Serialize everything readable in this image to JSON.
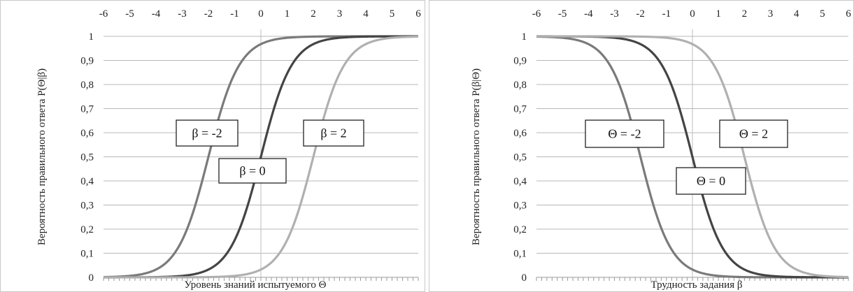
{
  "chart_data": [
    {
      "type": "line",
      "xlabel": "Уровень знаний испытуемого Θ",
      "ylabel": "Вероятность правильного ответа P(Θ|β)",
      "xlim": [
        -6,
        6
      ],
      "ylim": [
        0,
        1
      ],
      "x_ticks": [
        "-6",
        "-5",
        "-4",
        "-3",
        "-2",
        "-1",
        "0",
        "1",
        "2",
        "3",
        "4",
        "5",
        "6"
      ],
      "y_ticks": [
        "0",
        "0,1",
        "0,2",
        "0,3",
        "0,4",
        "0,5",
        "0,6",
        "0,7",
        "0,8",
        "0,9",
        "1"
      ],
      "x_axis_position": "top",
      "grid": "horizontal",
      "series": [
        {
          "name": "β = -2",
          "color": "#7a7a7a",
          "x": [
            -6,
            -5,
            -4,
            -3,
            -2,
            -1,
            0,
            1,
            2,
            3,
            4,
            5,
            6
          ],
          "values": [
            0.02,
            0.05,
            0.12,
            0.27,
            0.5,
            0.73,
            0.88,
            0.95,
            0.98,
            0.99,
            1.0,
            1.0,
            1.0
          ]
        },
        {
          "name": "β = 0",
          "color": "#444444",
          "x": [
            -6,
            -5,
            -4,
            -3,
            -2,
            -1,
            0,
            1,
            2,
            3,
            4,
            5,
            6
          ],
          "values": [
            0.0,
            0.01,
            0.02,
            0.05,
            0.12,
            0.27,
            0.5,
            0.73,
            0.88,
            0.95,
            0.98,
            0.99,
            1.0
          ]
        },
        {
          "name": "β = 2",
          "color": "#b0b0b0",
          "x": [
            -6,
            -5,
            -4,
            -3,
            -2,
            -1,
            0,
            1,
            2,
            3,
            4,
            5,
            6
          ],
          "values": [
            0.0,
            0.0,
            0.0,
            0.01,
            0.02,
            0.05,
            0.12,
            0.27,
            0.5,
            0.73,
            0.88,
            0.95,
            0.98
          ]
        }
      ],
      "annotations": [
        {
          "text": "β = -2",
          "series": 0
        },
        {
          "text": "β = 0",
          "series": 1
        },
        {
          "text": "β = 2",
          "series": 2
        }
      ]
    },
    {
      "type": "line",
      "xlabel": "Трудность задания β",
      "ylabel": "Вероятность правильного ответа P(β|Θ)",
      "xlim": [
        -6,
        6
      ],
      "ylim": [
        0,
        1
      ],
      "x_ticks": [
        "-6",
        "-5",
        "-4",
        "-3",
        "-2",
        "-1",
        "0",
        "1",
        "2",
        "3",
        "4",
        "5",
        "6"
      ],
      "y_ticks": [
        "0",
        "0,1",
        "0,2",
        "0,3",
        "0,4",
        "0,5",
        "0,6",
        "0,7",
        "0,8",
        "0,9",
        "1"
      ],
      "x_axis_position": "top",
      "grid": "horizontal",
      "series": [
        {
          "name": "Θ = -2",
          "color": "#7a7a7a",
          "x": [
            -6,
            -5,
            -4,
            -3,
            -2,
            -1,
            0,
            1,
            2,
            3,
            4,
            5,
            6
          ],
          "values": [
            0.98,
            0.95,
            0.88,
            0.73,
            0.5,
            0.27,
            0.12,
            0.05,
            0.02,
            0.01,
            0.0,
            0.0,
            0.0
          ]
        },
        {
          "name": "Θ = 0",
          "color": "#444444",
          "x": [
            -6,
            -5,
            -4,
            -3,
            -2,
            -1,
            0,
            1,
            2,
            3,
            4,
            5,
            6
          ],
          "values": [
            1.0,
            0.99,
            0.98,
            0.95,
            0.88,
            0.73,
            0.5,
            0.27,
            0.12,
            0.05,
            0.02,
            0.01,
            0.0
          ]
        },
        {
          "name": "Θ = 2",
          "color": "#b0b0b0",
          "x": [
            -6,
            -5,
            -4,
            -3,
            -2,
            -1,
            0,
            1,
            2,
            3,
            4,
            5,
            6
          ],
          "values": [
            1.0,
            1.0,
            1.0,
            0.99,
            0.98,
            0.95,
            0.88,
            0.73,
            0.5,
            0.27,
            0.12,
            0.05,
            0.02
          ]
        }
      ],
      "annotations": [
        {
          "text": "Θ = -2",
          "series": 0
        },
        {
          "text": "Θ = 0",
          "series": 1
        },
        {
          "text": "Θ = 2",
          "series": 2
        }
      ]
    }
  ]
}
